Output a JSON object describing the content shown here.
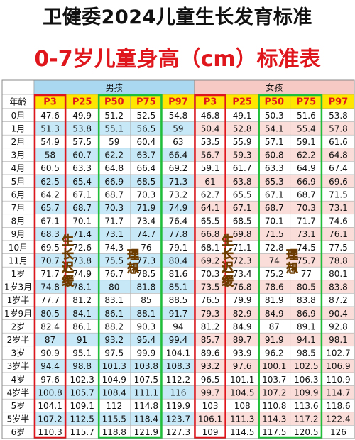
{
  "header": {
    "title": "卫健委2024儿童生长发育标准",
    "subtitle": "0-7岁儿童身高（cm）标准表"
  },
  "table": {
    "groups": [
      "男孩",
      "女孩"
    ],
    "columns": [
      "年龄",
      "P3",
      "P25",
      "P50",
      "P75",
      "P97",
      "P3",
      "P25",
      "P50",
      "P75",
      "P97"
    ],
    "rows": [
      [
        "0月",
        47.6,
        49.9,
        51.2,
        52.5,
        54.8,
        46.8,
        49.1,
        50.3,
        51.6,
        53.8
      ],
      [
        "1月",
        51.3,
        53.8,
        55.1,
        56.5,
        59,
        50.4,
        52.8,
        54.1,
        55.4,
        57.8
      ],
      [
        "2月",
        54.9,
        57.5,
        59,
        60.4,
        63,
        53.5,
        55.9,
        57.1,
        59.1,
        61.6
      ],
      [
        "3月",
        58,
        60.7,
        62.2,
        63.7,
        66.4,
        56.7,
        59.3,
        60.8,
        62.2,
        64.8
      ],
      [
        "4月",
        60.5,
        63.3,
        64.8,
        66.4,
        69.2,
        59.1,
        61.7,
        63.3,
        64.9,
        67.4
      ],
      [
        "5月",
        62.5,
        65.4,
        66.9,
        68.5,
        71.3,
        61,
        63.8,
        65.3,
        66.9,
        69.6
      ],
      [
        "6月",
        64.2,
        67.1,
        68.7,
        70.3,
        73.2,
        62.7,
        65.5,
        67.1,
        68.7,
        71.5
      ],
      [
        "7月",
        65.7,
        68.7,
        70.3,
        71.9,
        74.9,
        64.1,
        67.1,
        68.7,
        70.3,
        73.1
      ],
      [
        "8月",
        67.1,
        70.1,
        71.7,
        73.4,
        76.4,
        65.5,
        68.5,
        70.1,
        71.7,
        74.6
      ],
      [
        "9月",
        68.3,
        71.4,
        73.1,
        74.7,
        77.8,
        66.8,
        69.8,
        71.5,
        73.1,
        76.1
      ],
      [
        "10月",
        69.5,
        72.6,
        74.3,
        76,
        79.1,
        68.1,
        71.1,
        72.8,
        74.5,
        77.5
      ],
      [
        "11月",
        70.7,
        73.8,
        75.5,
        77.3,
        80.4,
        69.2,
        72.3,
        74,
        75.7,
        78.8
      ],
      [
        "1岁",
        71.7,
        74.9,
        76.7,
        78.5,
        81.6,
        70.3,
        73.4,
        75.2,
        77,
        80.1
      ],
      [
        "1岁3月",
        74.8,
        78.1,
        80,
        81.8,
        85.1,
        73.5,
        76.8,
        78.6,
        80.5,
        83.8
      ],
      [
        "1岁半",
        77.7,
        81.2,
        83.1,
        85,
        88.5,
        76.5,
        79.9,
        81.9,
        83.8,
        87.2
      ],
      [
        "1岁9月",
        80.5,
        84.1,
        86.1,
        88.1,
        91.7,
        79.3,
        82.9,
        84.9,
        86.9,
        90.4
      ],
      [
        "2岁",
        82.4,
        86.1,
        88.2,
        90.3,
        94,
        81.2,
        84.9,
        87,
        89.1,
        92.8
      ],
      [
        "2岁半",
        87,
        91,
        93.2,
        95.4,
        99.4,
        85.7,
        89.7,
        91.9,
        94.1,
        98.1
      ],
      [
        "3岁",
        90.9,
        95.1,
        97.5,
        99.9,
        104.1,
        89.6,
        93.9,
        96.2,
        98.5,
        102.7
      ],
      [
        "3岁半",
        94.4,
        98.8,
        101.3,
        103.8,
        108.3,
        93.2,
        97.6,
        100.1,
        102.5,
        106.9
      ],
      [
        "4岁",
        97.6,
        102.3,
        104.9,
        107.5,
        112.2,
        96.5,
        101.1,
        103.7,
        106.3,
        110.9
      ],
      [
        "4岁半",
        100.8,
        105.7,
        108.4,
        111.1,
        116,
        99.7,
        104.5,
        107.2,
        109.9,
        114.7
      ],
      [
        "5岁",
        104.1,
        109.1,
        112,
        114.8,
        119.9,
        103,
        108,
        110.8,
        113.6,
        118.6
      ],
      [
        "5岁半",
        107.2,
        112.5,
        115.5,
        118.4,
        123.7,
        106.1,
        111.3,
        114.3,
        117.2,
        122.4
      ],
      [
        "6岁",
        110.3,
        115.7,
        118.8,
        121.9,
        127.3,
        109,
        114.5,
        117.5,
        120.5,
        126
      ]
    ]
  },
  "annotations": [
    "生长迟缓",
    "理想",
    "生长迟缓",
    "理想"
  ]
}
